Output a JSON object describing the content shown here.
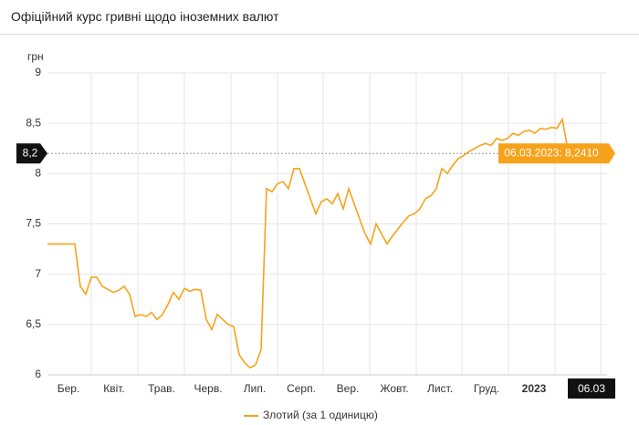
{
  "header": {
    "title": "Офіційний курс гривні щодо іноземних валют"
  },
  "chart_data": {
    "type": "line",
    "y_unit": "грн",
    "x_labels": [
      "Бер.",
      "Квіт.",
      "Трав.",
      "Черв.",
      "Лип.",
      "Серп.",
      "Вер.",
      "Жовт.",
      "Лист.",
      "Груд.",
      "2023",
      "06.03"
    ],
    "series": [
      {
        "name": "Злотий (за 1 одиницю)",
        "color": "#f7a21b",
        "values": [
          7.3,
          7.3,
          7.3,
          7.3,
          7.3,
          7.3,
          6.88,
          6.8,
          6.97,
          6.97,
          6.88,
          6.85,
          6.82,
          6.84,
          6.88,
          6.8,
          6.58,
          6.6,
          6.58,
          6.62,
          6.55,
          6.6,
          6.7,
          6.82,
          6.75,
          6.86,
          6.83,
          6.85,
          6.84,
          6.55,
          6.45,
          6.6,
          6.55,
          6.5,
          6.48,
          6.2,
          6.12,
          6.07,
          6.1,
          6.25,
          7.85,
          7.82,
          7.9,
          7.92,
          7.85,
          8.05,
          8.05,
          7.9,
          7.75,
          7.6,
          7.72,
          7.75,
          7.7,
          7.8,
          7.65,
          7.85,
          7.7,
          7.55,
          7.4,
          7.3,
          7.5,
          7.4,
          7.3,
          7.38,
          7.45,
          7.52,
          7.58,
          7.6,
          7.65,
          7.75,
          7.78,
          7.85,
          8.05,
          8.0,
          8.08,
          8.15,
          8.18,
          8.22,
          8.25,
          8.28,
          8.3,
          8.28,
          8.35,
          8.33,
          8.35,
          8.4,
          8.38,
          8.42,
          8.43,
          8.4,
          8.45,
          8.44,
          8.46,
          8.45,
          8.54,
          8.24
        ]
      }
    ],
    "ylim": [
      6,
      9
    ],
    "yticks": [
      {
        "value": 6,
        "label": "6"
      },
      {
        "value": 6.5,
        "label": "6,5"
      },
      {
        "value": 7,
        "label": "7"
      },
      {
        "value": 7.5,
        "label": "7,5"
      },
      {
        "value": 8,
        "label": "8"
      },
      {
        "value": 8.5,
        "label": "8,5"
      },
      {
        "value": 9,
        "label": "9"
      }
    ],
    "grid": true,
    "crosshair": {
      "value": 8.2,
      "label": "8,2"
    },
    "tooltip": "06.03.2023: 8,2410"
  }
}
